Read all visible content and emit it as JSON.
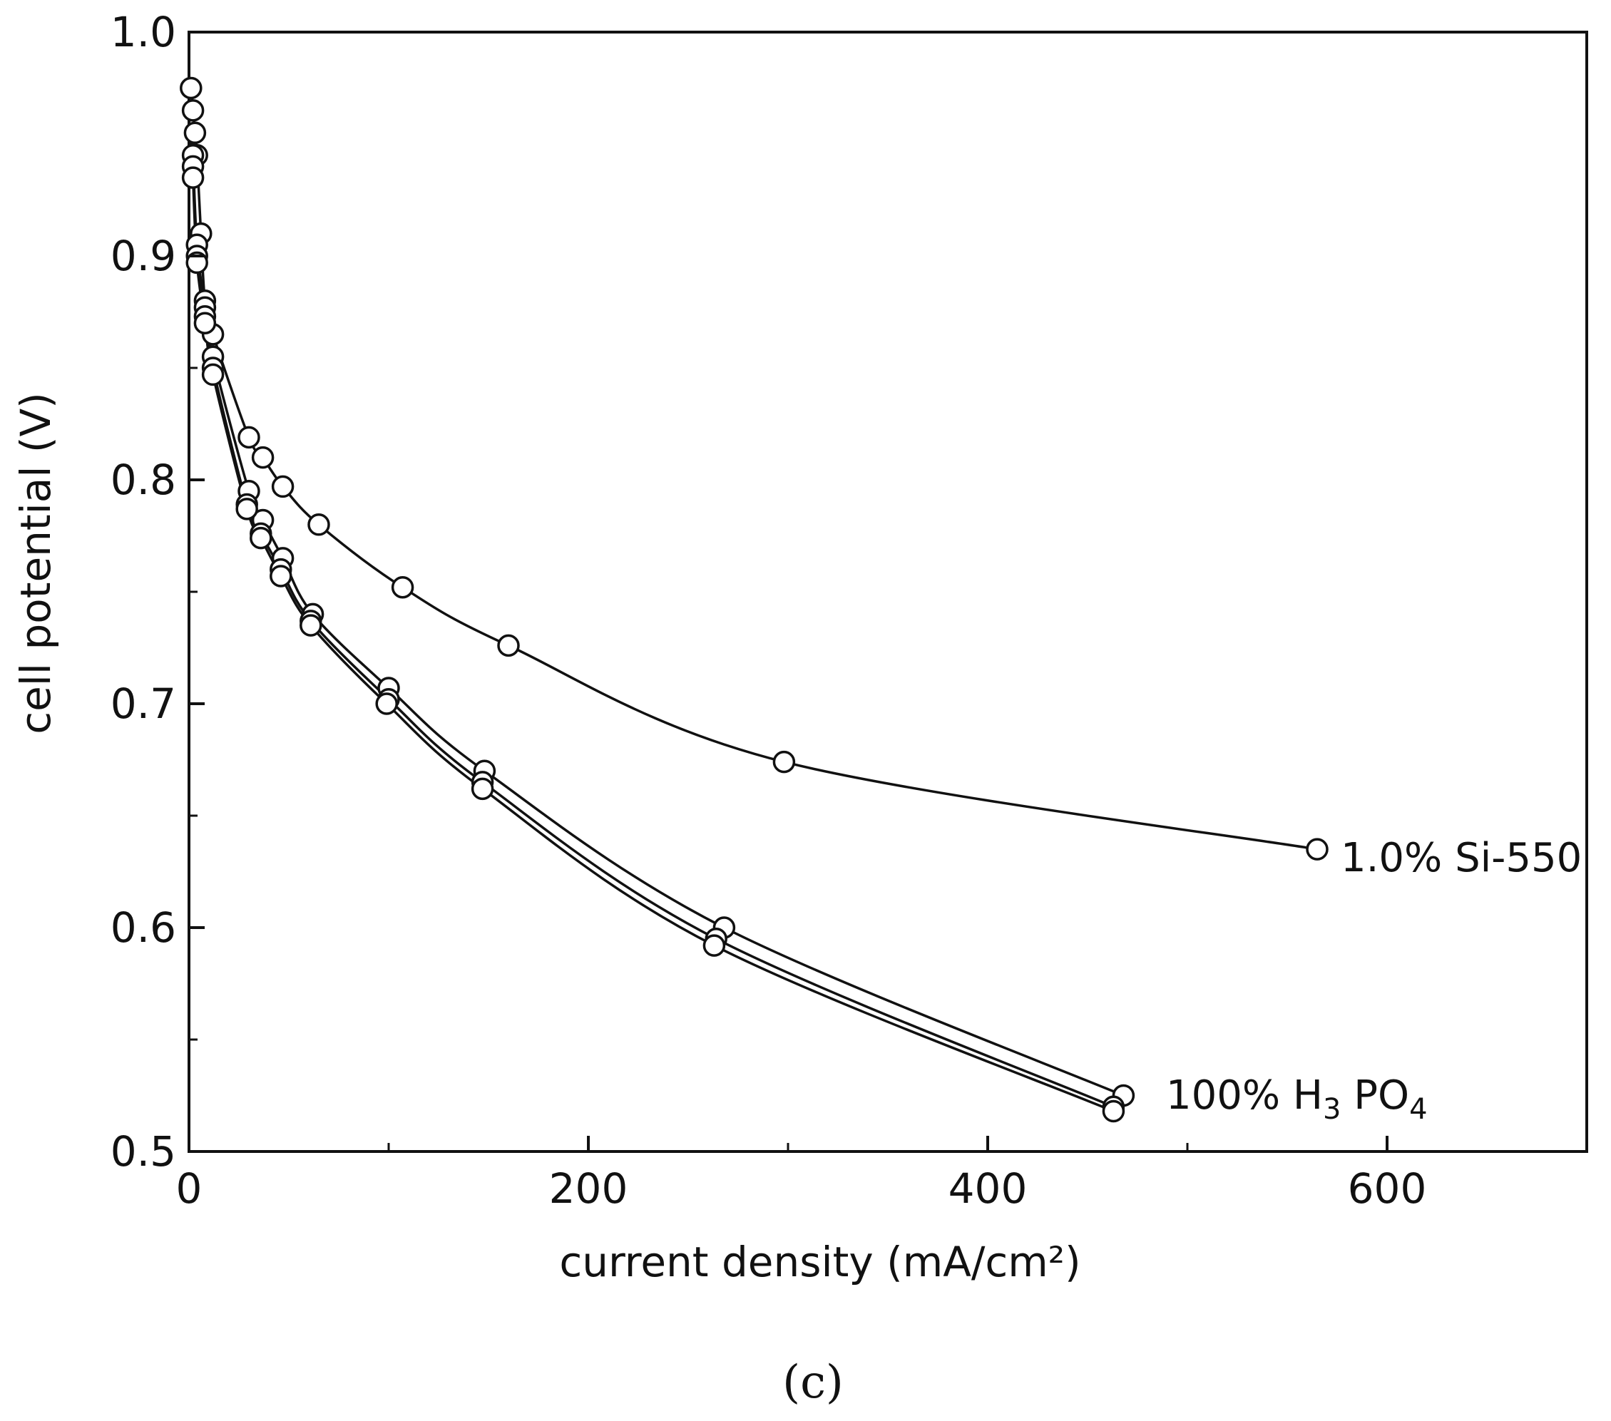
{
  "chart_data": {
    "type": "line",
    "xlabel": "current density (mA/cm²)",
    "ylabel": "cell potential (V)",
    "xlim": [
      0,
      700
    ],
    "ylim": [
      0.5,
      1.0
    ],
    "x_ticks": [
      0,
      200,
      400,
      600
    ],
    "y_ticks": [
      0.5,
      0.6,
      0.7,
      0.8,
      0.9,
      1.0
    ],
    "x_tick_labels": [
      "0",
      "200",
      "400",
      "600"
    ],
    "y_tick_labels": [
      "0.5",
      "0.6",
      "0.7",
      "0.8",
      "0.9",
      "1.0"
    ],
    "grid": false,
    "marker": "open-circle",
    "panel_label": "(c)",
    "series": [
      {
        "name": "1.0% Si-550",
        "label_main": "1.0% Si-550",
        "label_sub": "",
        "label_tail": "",
        "label_sub2": "",
        "x": [
          1,
          2,
          3,
          4,
          6,
          8,
          12,
          30,
          37,
          47,
          65,
          107,
          160,
          298,
          565
        ],
        "y": [
          0.975,
          0.965,
          0.955,
          0.945,
          0.91,
          0.88,
          0.865,
          0.819,
          0.81,
          0.797,
          0.78,
          0.752,
          0.726,
          0.674,
          0.635
        ]
      },
      {
        "name": "100% H3PO4",
        "label_main": "100% H",
        "label_sub": "3",
        "label_tail": " PO",
        "label_sub2": "4",
        "x": [
          2,
          4,
          8,
          12,
          30,
          37,
          47,
          62,
          100,
          148,
          268,
          468
        ],
        "y": [
          0.945,
          0.905,
          0.877,
          0.855,
          0.795,
          0.782,
          0.765,
          0.74,
          0.707,
          0.67,
          0.6,
          0.525
        ]
      },
      {
        "name": "",
        "x": [
          2,
          4,
          8,
          12,
          29,
          36,
          46,
          61,
          100,
          147,
          264,
          463
        ],
        "y": [
          0.94,
          0.9,
          0.873,
          0.85,
          0.789,
          0.776,
          0.76,
          0.737,
          0.702,
          0.665,
          0.595,
          0.52
        ]
      },
      {
        "name": "",
        "x": [
          2,
          4,
          8,
          12,
          29,
          36,
          46,
          61,
          99,
          147,
          263,
          463
        ],
        "y": [
          0.935,
          0.897,
          0.87,
          0.847,
          0.787,
          0.774,
          0.757,
          0.735,
          0.7,
          0.662,
          0.592,
          0.518
        ]
      }
    ]
  }
}
